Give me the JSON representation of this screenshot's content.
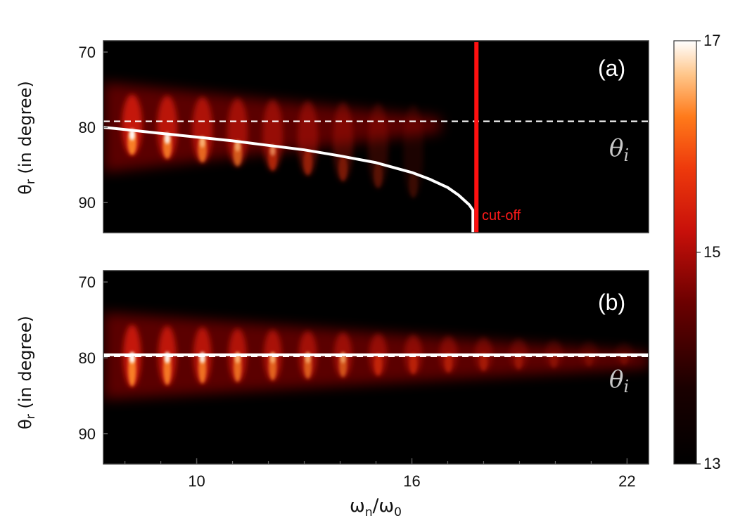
{
  "chart_data": {
    "type": "heatmap",
    "xlabel": "ω",
    "xlabel_sub_n": "n",
    "xlabel_slash": "/ω",
    "xlabel_sub_0": "0",
    "xlim": [
      7.4,
      22.6
    ],
    "x_ticks": [
      10,
      16,
      22
    ],
    "x_tick_labels": [
      "10",
      "16",
      "22"
    ],
    "colorbar": {
      "min": 13,
      "max": 17,
      "tick_labels": [
        "17",
        "15",
        "13"
      ],
      "colormap": "hot"
    },
    "panels": [
      {
        "id": "a",
        "label": "(a)",
        "ylabel": "θ",
        "ylabel_sub": "r",
        "ylabel_rest": " (in degree)",
        "ylim": [
          68.5,
          94
        ],
        "y_ticks": [
          70,
          80,
          90
        ],
        "y_tick_labels": [
          "70",
          "80",
          "90"
        ],
        "incidence_angle": 79.2,
        "incidence_label": "θ",
        "incidence_label_sub": "i",
        "cutoff_x": 17.8,
        "cutoff_label": "cut-off",
        "theory_curve": {
          "x": [
            7.4,
            8,
            9,
            10,
            11,
            12,
            13,
            14,
            15,
            16,
            16.5,
            17,
            17.3,
            17.6,
            17.7
          ],
          "y": [
            80.0,
            80.3,
            80.8,
            81.3,
            81.8,
            82.4,
            83.0,
            83.8,
            84.7,
            86.0,
            86.9,
            88.0,
            89.0,
            90.3,
            91.0
          ]
        },
        "harmonics": {
          "x_start": 8.2,
          "x_end": 16.8,
          "spacing": 0.98,
          "y_upper": 76,
          "y_lower": 84,
          "peak_y": 80
        }
      },
      {
        "id": "b",
        "label": "(b)",
        "ylabel": "θ",
        "ylabel_sub": "r",
        "ylabel_rest": " (in degree)",
        "ylim": [
          68.5,
          94
        ],
        "y_ticks": [
          70,
          80,
          90
        ],
        "y_tick_labels": [
          "70",
          "80",
          "90"
        ],
        "incidence_angle": 79.8,
        "incidence_label": "θ",
        "incidence_label_sub": "i",
        "theory_curve": {
          "x": [
            7.4,
            22.6
          ],
          "y": [
            79.6,
            79.6
          ]
        },
        "harmonics": {
          "x_start": 8.2,
          "x_end": 22.6,
          "spacing": 0.98,
          "y_upper": 76,
          "y_lower": 83.5,
          "peak_y": 79.6
        }
      }
    ]
  }
}
